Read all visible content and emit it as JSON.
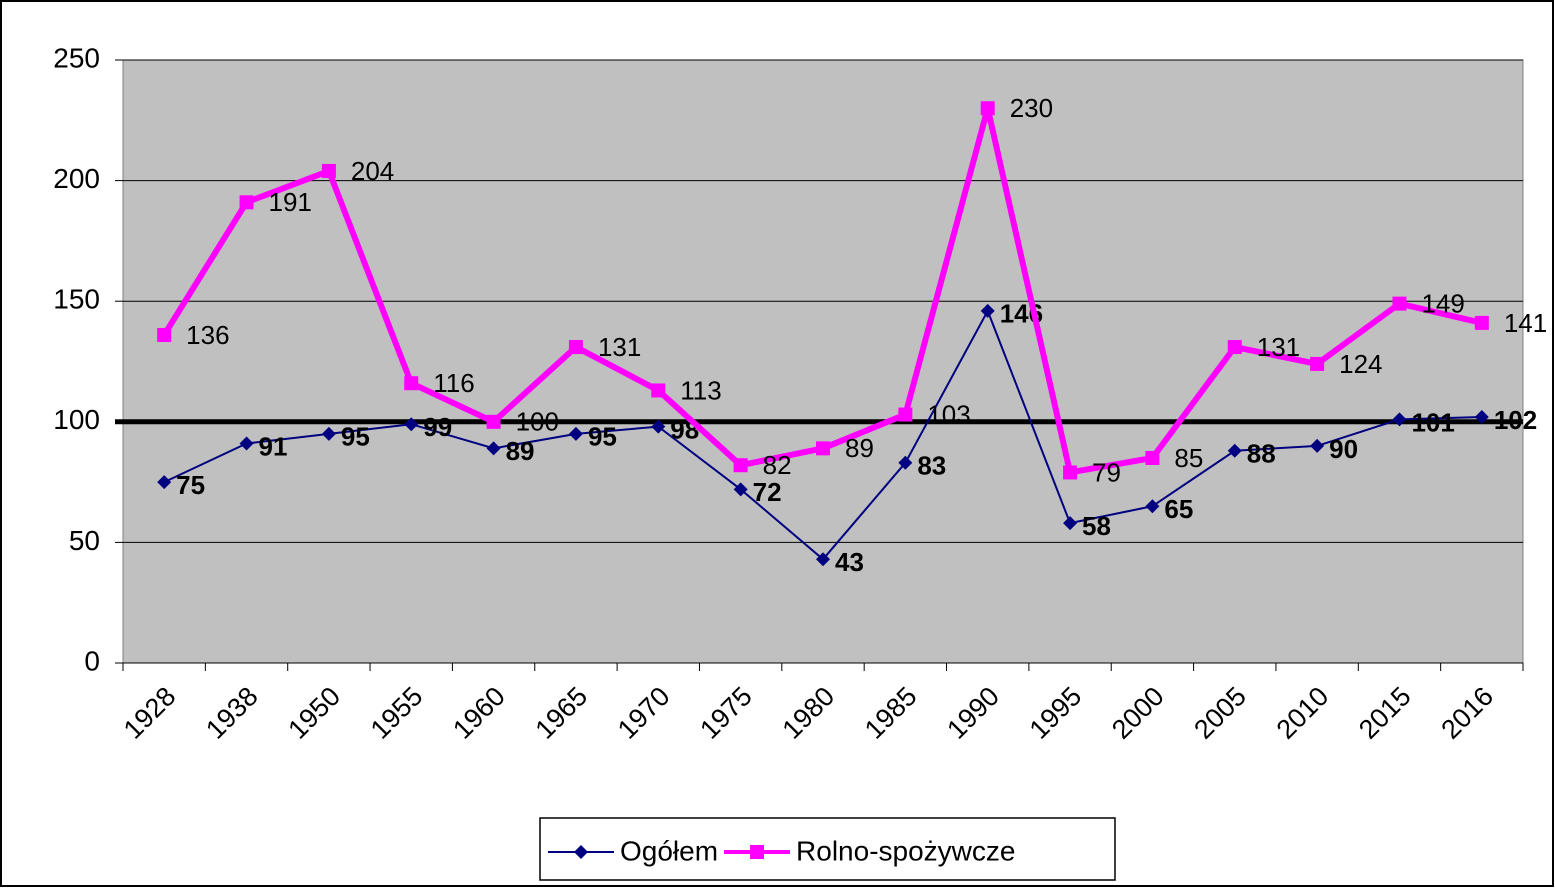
{
  "chart_data": {
    "type": "line",
    "categories": [
      "1928",
      "1938",
      "1950",
      "1955",
      "1960",
      "1965",
      "1970",
      "1975",
      "1980",
      "1985",
      "1990",
      "1995",
      "2000",
      "2005",
      "2010",
      "2015",
      "2016"
    ],
    "series": [
      {
        "name": "Ogółem",
        "color": "#000080",
        "marker": "diamond",
        "values": [
          75,
          91,
          95,
          99,
          89,
          95,
          98,
          72,
          43,
          83,
          146,
          58,
          65,
          88,
          90,
          101,
          102
        ]
      },
      {
        "name": "Rolno-spożywcze",
        "color": "#ff00ff",
        "marker": "square",
        "values": [
          136,
          191,
          204,
          116,
          100,
          131,
          113,
          82,
          89,
          103,
          230,
          79,
          85,
          131,
          124,
          149,
          141
        ]
      }
    ],
    "ylim": [
      0,
      250
    ],
    "yticks": [
      0,
      50,
      100,
      150,
      200,
      250
    ],
    "grid": true,
    "reference_line": 100,
    "legend": "bottom"
  }
}
